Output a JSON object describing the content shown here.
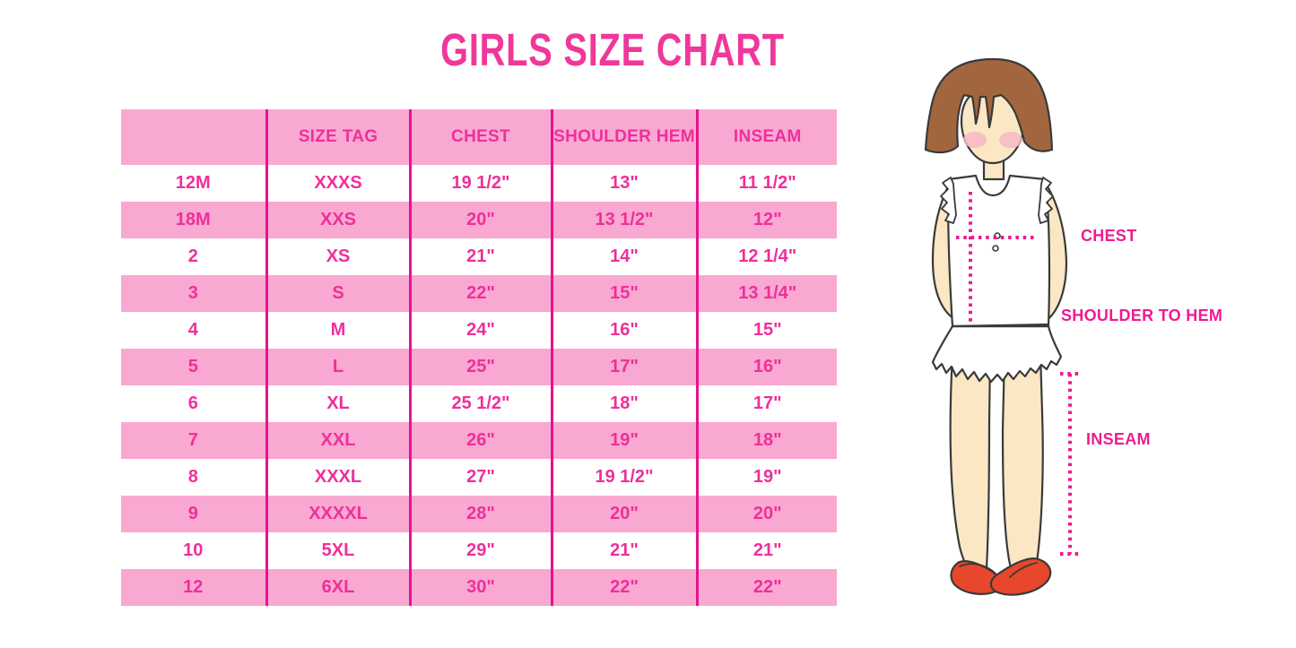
{
  "title": "GIRLS SIZE CHART",
  "chart_data": {
    "type": "table",
    "title": "GIRLS SIZE CHART",
    "columns": [
      "",
      "SIZE TAG",
      "CHEST",
      "SHOULDER HEM",
      "INSEAM"
    ],
    "rows": [
      [
        "12M",
        "XXXS",
        "19 1/2\"",
        "13\"",
        "11 1/2\""
      ],
      [
        "18M",
        "XXS",
        "20\"",
        "13 1/2\"",
        "12\""
      ],
      [
        "2",
        "XS",
        "21\"",
        "14\"",
        "12 1/4\""
      ],
      [
        "3",
        "S",
        "22\"",
        "15\"",
        "13 1/4\""
      ],
      [
        "4",
        "M",
        "24\"",
        "16\"",
        "15\""
      ],
      [
        "5",
        "L",
        "25\"",
        "17\"",
        "16\""
      ],
      [
        "6",
        "XL",
        "25 1/2\"",
        "18\"",
        "17\""
      ],
      [
        "7",
        "XXL",
        "26\"",
        "19\"",
        "18\""
      ],
      [
        "8",
        "XXXL",
        "27\"",
        "19 1/2\"",
        "19\""
      ],
      [
        "9",
        "XXXXL",
        "28\"",
        "20\"",
        "20\""
      ],
      [
        "10",
        "5XL",
        "29\"",
        "21\"",
        "21\""
      ],
      [
        "12",
        "6XL",
        "30\"",
        "22\"",
        "22\""
      ]
    ]
  },
  "diagram": {
    "chest_label": "CHEST",
    "shoulder_to_hem_label": "SHOULDER TO HEM",
    "inseam_label": "INSEAM"
  },
  "colors": {
    "title_pink": "#F0379A",
    "row_band_pink": "#F9A8D2",
    "column_line_magenta": "#E8128C",
    "table_text_pink": "#EF2F9A",
    "label_magenta": "#EE1C92",
    "dotted_line_magenta": "#EB1B92",
    "hair_brown": "#A2663E",
    "skin": "#FBE7C4",
    "blush": "#F4B9C5",
    "shoe_red": "#E8472B",
    "outline": "#3A3A3A"
  }
}
